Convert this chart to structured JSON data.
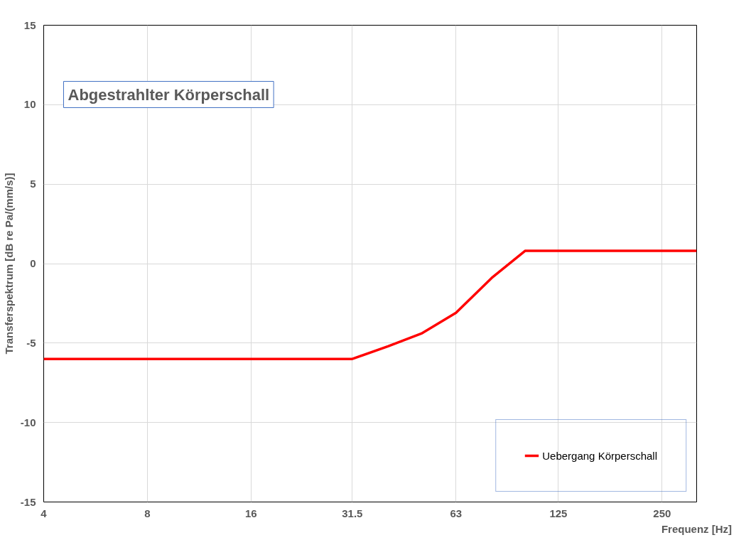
{
  "chart_data": {
    "type": "line",
    "title": "Abgestrahlter Körperschall",
    "xlabel": "Frequenz [Hz]",
    "ylabel": "Transferspektrum [dB re Pa/(mm/s)]",
    "x": [
      4,
      5,
      6.3,
      8,
      10,
      12.5,
      16,
      20,
      25,
      31.5,
      40,
      50,
      63,
      80,
      100,
      125,
      160,
      200,
      250,
      315
    ],
    "series": [
      {
        "name": "Uebergang Körperschall",
        "color": "#ff0000",
        "values": [
          -6,
          -6,
          -6,
          -6,
          -6,
          -6,
          -6,
          -6,
          -6,
          -6,
          -5.2,
          -4.4,
          -3.1,
          -0.9,
          0.8,
          0.8,
          0.8,
          0.8,
          0.8,
          0.8
        ]
      }
    ],
    "log": "x",
    "xlim": [
      4,
      315
    ],
    "xticks": [
      4,
      8,
      16,
      31.5,
      63,
      125,
      250
    ],
    "ylim": [
      -15,
      15
    ],
    "yticks": [
      -15,
      -10,
      -5,
      0,
      5,
      10,
      15
    ],
    "grid": true,
    "legend": "bottom right",
    "marker": "none",
    "line_style": "solid"
  }
}
